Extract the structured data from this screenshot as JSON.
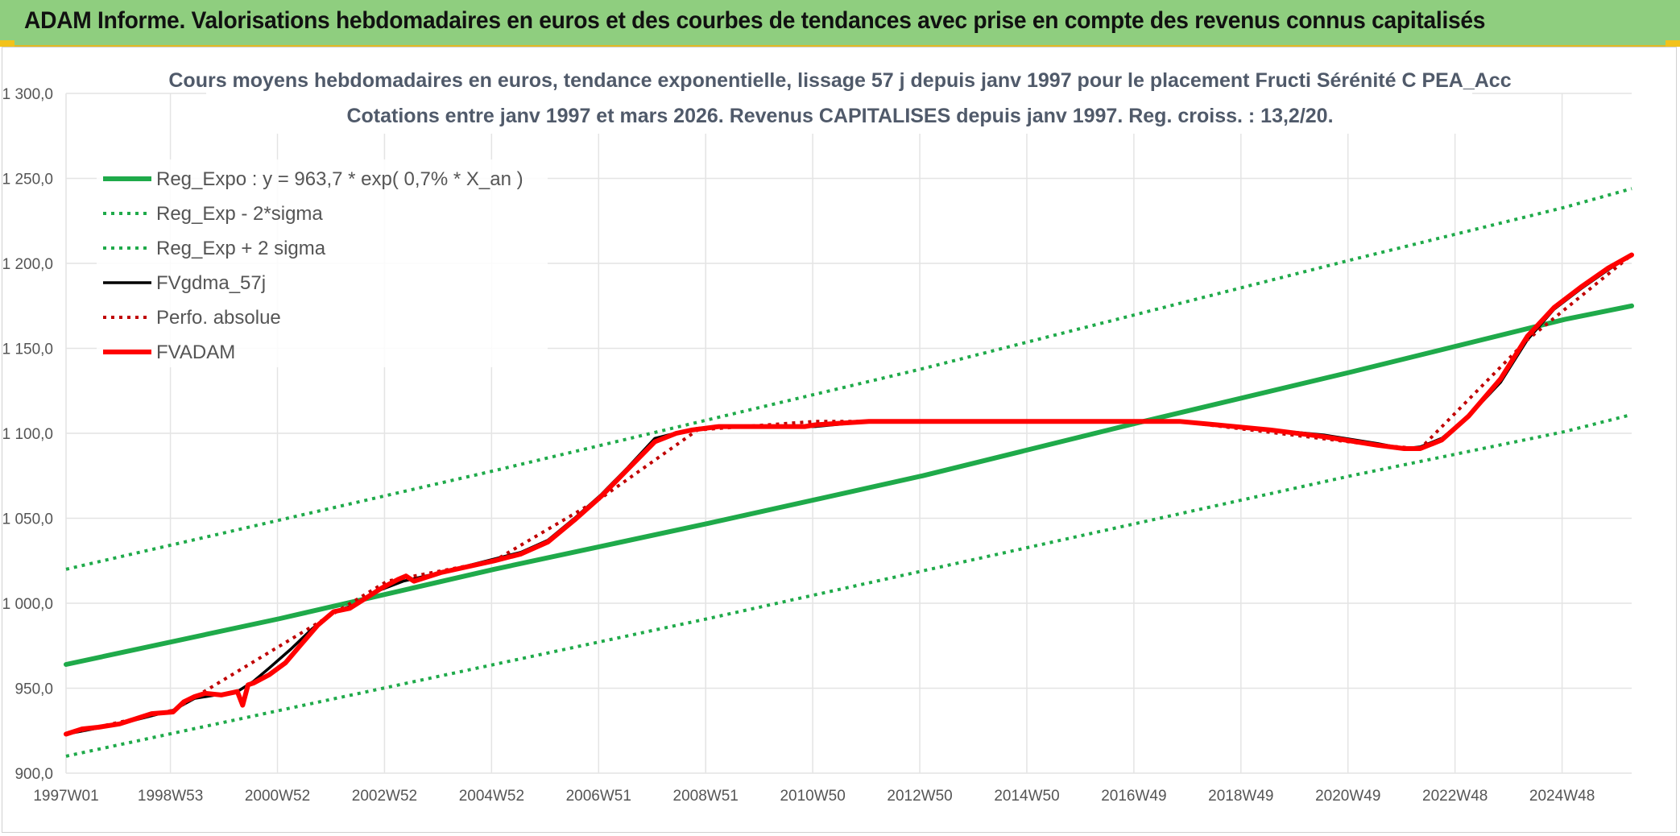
{
  "banner": {
    "title": "ADAM Informe. Valorisations hebdomadaires en euros et des courbes de tendances avec prise en compte des revenus connus capitalisés"
  },
  "colors": {
    "banner_bg": "#8fce7f",
    "regression": "#1faa4a",
    "sigma": "#1faa4a",
    "fvgdma": "#000000",
    "perfo": "#c00000",
    "fvadam": "#ff0000",
    "grid": "#e4e4e4"
  },
  "chart_data": {
    "type": "line",
    "title": [
      "Cours moyens hebdomadaires en euros, tendance exponentielle, lissage 57 j depuis janv 1997 pour le placement Fructi Sérénité C PEA_Acc",
      "Cotations entre janv 1997 et mars 2026. Revenus CAPITALISES depuis janv 1997. Reg. croiss. : 13,2/20."
    ],
    "xlabel": "",
    "ylabel": "",
    "x_range": [
      1997.0,
      2026.25
    ],
    "ylim": [
      900,
      1300
    ],
    "y_ticks": [
      900,
      950,
      1000,
      1050,
      1100,
      1150,
      1200,
      1250,
      1300
    ],
    "y_tick_labels": [
      "900,0",
      "950,0",
      "1 000,0",
      "1 050,0",
      "1 100,0",
      "1 150,0",
      "1 200,0",
      "1 250,0",
      "1 300,0"
    ],
    "x_ticks": [
      1997.0,
      1998.95,
      2000.95,
      2002.95,
      2004.95,
      2006.95,
      2008.95,
      2010.95,
      2012.95,
      2014.95,
      2016.95,
      2018.95,
      2020.95,
      2022.95,
      2024.95
    ],
    "x_tick_labels": [
      "1997W01",
      "1998W53",
      "2000W52",
      "2002W52",
      "2004W52",
      "2006W51",
      "2008W51",
      "2010W50",
      "2012W50",
      "2014W50",
      "2016W49",
      "2018W49",
      "2020W49",
      "2022W48",
      "2024W48"
    ],
    "grid": true,
    "legend_position": "top-left",
    "series": [
      {
        "name": "Reg_Expo : y = 963,7 * exp( 0,7% *  X_an )",
        "style": "solid-thick",
        "color": "#1faa4a",
        "x": [
          1997.0,
          2001.0,
          2005.0,
          2009.0,
          2013.0,
          2017.0,
          2021.0,
          2025.0,
          2026.25
        ],
        "y": [
          964,
          991,
          1020,
          1047,
          1075,
          1106,
          1136,
          1167,
          1175
        ]
      },
      {
        "name": "Reg_Exp - 2*sigma",
        "style": "dotted",
        "color": "#1faa4a",
        "x": [
          1997.0,
          2001.0,
          2005.0,
          2009.0,
          2013.0,
          2017.0,
          2021.0,
          2025.0,
          2026.25
        ],
        "y": [
          910,
          937,
          964,
          991,
          1019,
          1047,
          1075,
          1101,
          1111
        ]
      },
      {
        "name": "Reg_Exp + 2 sigma",
        "style": "dotted",
        "color": "#1faa4a",
        "x": [
          1997.0,
          2001.0,
          2005.0,
          2009.0,
          2013.0,
          2017.0,
          2021.0,
          2025.0,
          2026.25
        ],
        "y": [
          1020,
          1049,
          1078,
          1108,
          1138,
          1170,
          1202,
          1233,
          1244
        ]
      },
      {
        "name": "FVgdma_57j",
        "style": "solid",
        "color": "#000000",
        "x": [
          1997.0,
          1997.5,
          1998.0,
          1998.5,
          1999.0,
          1999.4,
          1999.8,
          2000.2,
          2000.5,
          2000.8,
          2001.2,
          2001.6,
          2002.0,
          2002.4,
          2002.8,
          2003.3,
          2004.0,
          2005.0,
          2005.5,
          2006.0,
          2006.5,
          2007.0,
          2007.5,
          2008.0,
          2008.5,
          2008.8,
          2009.2,
          2010.0,
          2010.8,
          2011.0,
          2012.0,
          2014.0,
          2016.0,
          2017.8,
          2018.5,
          2019.5,
          2020.5,
          2021.5,
          2022.0,
          2022.3,
          2022.7,
          2023.2,
          2023.8,
          2024.3,
          2024.8,
          2025.3,
          2025.8,
          2026.25
        ],
        "y": [
          923,
          926,
          929,
          933,
          937,
          944,
          946,
          948,
          954,
          962,
          973,
          985,
          995,
          999,
          1007,
          1013,
          1018,
          1026,
          1030,
          1037,
          1050,
          1064,
          1080,
          1097,
          1101,
          1103,
          1104,
          1104,
          1104,
          1104,
          1107,
          1107,
          1107,
          1107,
          1105,
          1102,
          1099,
          1094,
          1091,
          1092,
          1097,
          1110,
          1130,
          1155,
          1173,
          1185,
          1196,
          1205
        ]
      },
      {
        "name": "Perfo. absolue",
        "style": "dotted",
        "color": "#c00000",
        "x": [
          1997.0,
          1999.0,
          2001.0,
          2003.0,
          2005.0,
          2007.0,
          2008.8,
          2011.0,
          2017.8,
          2021.5,
          2022.3,
          2024.3,
          2026.25
        ],
        "y": [
          923,
          937,
          975,
          1013,
          1025,
          1062,
          1102,
          1107,
          1107,
          1093,
          1091,
          1155,
          1205
        ]
      },
      {
        "name": "FVADAM",
        "style": "solid-thick",
        "color": "#ff0000",
        "x": [
          1997.0,
          1997.3,
          1997.6,
          1998.0,
          1998.3,
          1998.6,
          1999.0,
          1999.2,
          1999.4,
          1999.6,
          1999.9,
          2000.2,
          2000.3,
          2000.4,
          2000.5,
          2000.8,
          2001.1,
          2001.4,
          2001.7,
          2002.0,
          2002.3,
          2002.6,
          2002.9,
          2003.2,
          2003.35,
          2003.5,
          2004.0,
          2005.0,
          2005.5,
          2006.0,
          2006.5,
          2007.0,
          2007.5,
          2008.0,
          2008.4,
          2008.7,
          2009.2,
          2010.0,
          2010.8,
          2011.0,
          2012.0,
          2014.0,
          2016.0,
          2017.8,
          2018.5,
          2019.5,
          2020.5,
          2021.5,
          2022.0,
          2022.3,
          2022.7,
          2023.2,
          2023.8,
          2024.3,
          2024.8,
          2025.3,
          2025.8,
          2026.25
        ],
        "y": [
          923,
          926,
          927,
          929,
          932,
          935,
          936,
          942,
          945,
          947,
          946,
          948,
          940,
          952,
          953,
          958,
          965,
          976,
          987,
          995,
          997,
          1003,
          1009,
          1014,
          1016,
          1013,
          1018,
          1025,
          1029,
          1036,
          1049,
          1063,
          1079,
          1095,
          1100,
          1102,
          1104,
          1104,
          1104,
          1105,
          1107,
          1107,
          1107,
          1107,
          1105,
          1102,
          1098,
          1093,
          1091,
          1091,
          1096,
          1110,
          1132,
          1157,
          1174,
          1186,
          1197,
          1205
        ]
      }
    ]
  }
}
